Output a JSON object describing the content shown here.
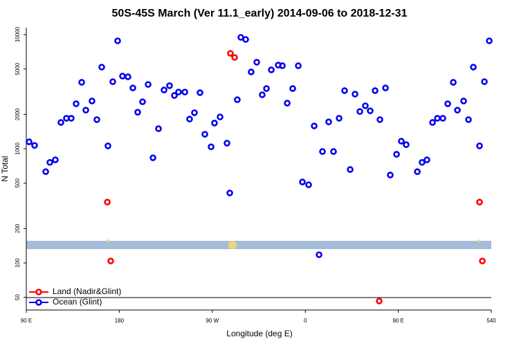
{
  "chart_data": {
    "type": "scatter",
    "title": "50S-45S March (Ver 11.1_early)   2014-09-06 to 2018-12-31",
    "xlabel": "Longitude (deg E)",
    "ylabel": "N Total",
    "xlim": [
      90,
      540
    ],
    "ylim": [
      38.7,
      11500
    ],
    "log_y": true,
    "legend": "lower left",
    "xticks": [
      {
        "value": 90,
        "label": "90 E"
      },
      180,
      {
        "value": 270,
        "label": "90 W"
      },
      {
        "value": 360,
        "label": "0"
      },
      {
        "value": 450,
        "label": "90 E"
      },
      540
    ],
    "yticks": [
      50,
      100,
      200,
      500,
      1000,
      2000,
      5000,
      10000
    ],
    "series": [
      {
        "name": "Land (Nadir&Glint)",
        "color": "#ff0000",
        "x": [
          168.4,
          171.7,
          287.5,
          291.6,
          431.5,
          528.6,
          531.3
        ],
        "values": [
          341,
          104,
          6850,
          6310,
          46.4,
          341,
          104
        ]
      },
      {
        "name": "Ocean (Glint)",
        "color": "#0000ee",
        "x": [
          92.7,
          98,
          108.8,
          112.8,
          118.1,
          123.5,
          128.8,
          133.5,
          138.2,
          143.6,
          147.6,
          153.6,
          158.3,
          163,
          169,
          173.7,
          178.4,
          183.1,
          188.4,
          193.1,
          197.8,
          202.5,
          207.9,
          212.6,
          217.9,
          223.3,
          228.6,
          233.3,
          237.3,
          243.4,
          248,
          252.7,
          258.1,
          262.8,
          268.8,
          272.1,
          277.5,
          284.2,
          286.9,
          294.2,
          297.6,
          302.3,
          307.6,
          313,
          318.3,
          322.4,
          327.1,
          333.8,
          337.8,
          342.5,
          347.8,
          353.2,
          357.2,
          363.2,
          368.6,
          373.3,
          376.6,
          382.6,
          387.3,
          392.7,
          398,
          403.4,
          408.1,
          412.8,
          418.1,
          422.8,
          427.5,
          432.2,
          437.6,
          442.2,
          448.3,
          452.9,
          457.6,
          468.4,
          473,
          477.7,
          483.1,
          487.8,
          493.1,
          497.8,
          503.2,
          507.2,
          513.2,
          517.9,
          522.6,
          528.6,
          533.3,
          538
        ],
        "values": [
          1150,
          1070,
          630,
          760,
          800,
          1700,
          1850,
          1850,
          2480,
          3820,
          2180,
          2620,
          1800,
          5190,
          1060,
          3870,
          8820,
          4330,
          4270,
          3410,
          2090,
          2580,
          3660,
          834,
          1500,
          3270,
          3570,
          2930,
          3140,
          3140,
          1820,
          2070,
          3100,
          1340,
          1040,
          1680,
          1900,
          1120,
          410,
          2690,
          9460,
          9070,
          4710,
          5730,
          2970,
          3370,
          4910,
          5410,
          5340,
          2510,
          3370,
          5340,
          512,
          484,
          1585,
          118,
          946,
          1720,
          946,
          1850,
          3230,
          658,
          3010,
          2120,
          2380,
          2150,
          3230,
          1800,
          3410,
          589,
          895,
          1166,
          1087,
          630,
          760,
          800,
          1700,
          1850,
          1850,
          2480,
          3820,
          2180,
          2620,
          1800,
          5190,
          1060,
          3870,
          8820
        ]
      }
    ]
  }
}
